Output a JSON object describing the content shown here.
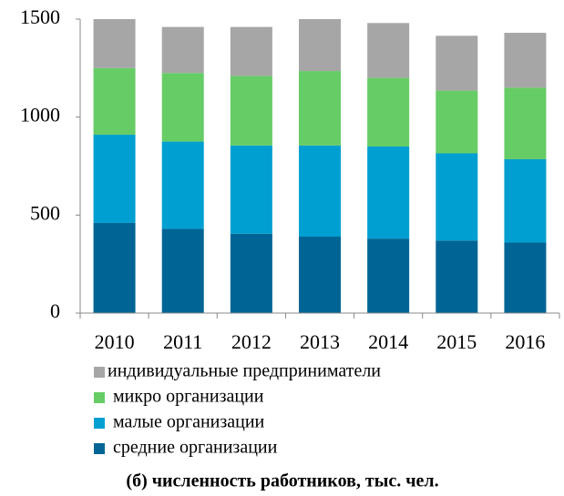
{
  "chart_data": {
    "type": "stacked_bar",
    "title": "(б) численность работников, тыс. чел.",
    "categories": [
      "2010",
      "2011",
      "2012",
      "2013",
      "2014",
      "2015",
      "2016"
    ],
    "series": [
      {
        "name": "средние организации",
        "color": "#006594",
        "values": [
          460,
          430,
          405,
          390,
          380,
          370,
          360
        ]
      },
      {
        "name": "малые организации",
        "color": "#009fd1",
        "values": [
          450,
          445,
          450,
          465,
          470,
          445,
          425
        ]
      },
      {
        "name": "микро организации",
        "color": "#66cc66",
        "values": [
          340,
          350,
          355,
          380,
          350,
          320,
          365
        ]
      },
      {
        "name": "индивидуальные предприниматели",
        "color": "#a6a6a6",
        "values": [
          250,
          235,
          250,
          265,
          280,
          280,
          280
        ]
      }
    ],
    "ylim": [
      0,
      1500
    ],
    "yticks": [
      0,
      500,
      1000,
      1500
    ],
    "grid": false
  }
}
